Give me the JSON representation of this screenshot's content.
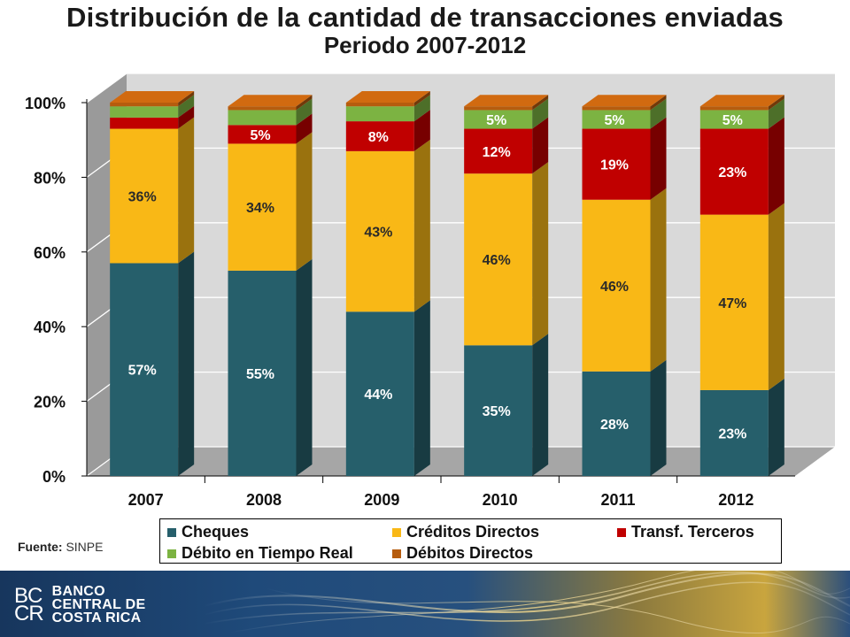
{
  "title": "Distribución de la cantidad de transacciones enviadas",
  "subtitle": "Periodo 2007-2012",
  "source": {
    "label": "Fuente:",
    "value": "SINPE"
  },
  "bank": {
    "mark_top": "BC",
    "mark_bottom": "CR",
    "name_lines": [
      "BANCO",
      "CENTRAL DE",
      "COSTA RICA"
    ]
  },
  "chart_data": {
    "type": "bar",
    "stacked": true,
    "percent_stacked": true,
    "three_d": true,
    "categories": [
      "2007",
      "2008",
      "2009",
      "2010",
      "2011",
      "2012"
    ],
    "y_ticks": [
      "0%",
      "20%",
      "40%",
      "60%",
      "80%",
      "100%"
    ],
    "ylim": [
      0,
      100
    ],
    "grid": true,
    "legend_position": "bottom",
    "series": [
      {
        "name": "Cheques",
        "color": "#265f6b",
        "values": [
          57,
          55,
          44,
          35,
          28,
          23
        ],
        "labels": [
          "57%",
          "55%",
          "44%",
          "35%",
          "28%",
          "23%"
        ]
      },
      {
        "name": "Créditos Directos",
        "color": "#f9b816",
        "values": [
          36,
          34,
          43,
          46,
          46,
          47
        ],
        "labels": [
          "36%",
          "34%",
          "43%",
          "46%",
          "46%",
          "47%"
        ]
      },
      {
        "name": "Transf. Terceros",
        "color": "#c00000",
        "values": [
          3,
          5,
          8,
          12,
          19,
          23
        ],
        "labels": [
          "",
          "5%",
          "8%",
          "12%",
          "19%",
          "23%"
        ]
      },
      {
        "name": "Débito en Tiempo Real",
        "color": "#7cb342",
        "values": [
          3,
          4,
          4,
          5,
          5,
          5
        ],
        "labels": [
          "",
          "",
          "",
          "5%",
          "5%",
          "5%"
        ]
      },
      {
        "name": "Débitos Directos",
        "color": "#b65c0e",
        "values": [
          1,
          1,
          1,
          1,
          1,
          1
        ],
        "labels": [
          "",
          "",
          "",
          "",
          "",
          ""
        ]
      }
    ]
  }
}
